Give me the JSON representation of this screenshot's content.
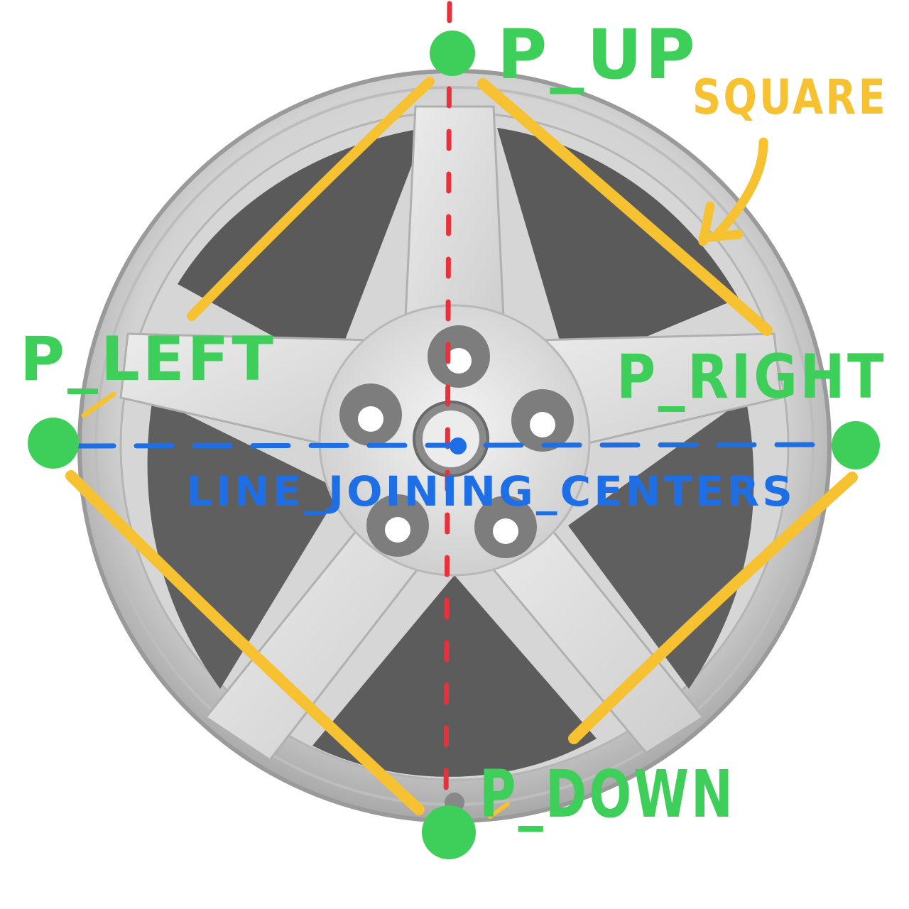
{
  "labels": {
    "p_up": "P_UP",
    "p_left": "P_LEFT",
    "p_right": "P_RIGHT",
    "p_down": "P_DOWN",
    "square": "SQUARE",
    "line_joining_centers": "LINE_JOINING_CENTERS"
  },
  "colors": {
    "points": "#3ecf5a",
    "square": "#f6c231",
    "center_line": "#1e6fe6",
    "vertical_line": "#e8313b",
    "rim": "#c4c4c4",
    "rim_dark": "#6e6e6e",
    "spoke": "#dcdcdc"
  }
}
